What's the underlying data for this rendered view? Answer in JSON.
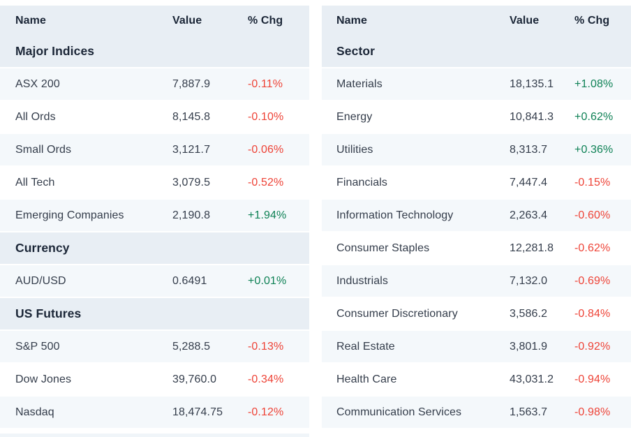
{
  "colors": {
    "header_bg": "#e8eef4",
    "stripe_row_bg": "#f4f8fb",
    "plain_row_bg": "#ffffff",
    "heading_text": "#1b2637",
    "row_text": "#343d4b",
    "positive_change": "#0e8155",
    "negative_change": "#ee4337"
  },
  "tables": [
    {
      "columns": {
        "name": "Name",
        "value": "Value",
        "chg": "% Chg"
      },
      "groups": [
        {
          "section": "Major Indices",
          "rows": [
            {
              "name": "ASX 200",
              "value": "7,887.9",
              "chg": "-0.11%"
            },
            {
              "name": "All Ords",
              "value": "8,145.8",
              "chg": "-0.10%"
            },
            {
              "name": "Small Ords",
              "value": "3,121.7",
              "chg": "-0.06%"
            },
            {
              "name": "All Tech",
              "value": "3,079.5",
              "chg": "-0.52%"
            },
            {
              "name": "Emerging Companies",
              "value": "2,190.8",
              "chg": "+1.94%"
            }
          ]
        },
        {
          "section": "Currency",
          "rows": [
            {
              "name": "AUD/USD",
              "value": "0.6491",
              "chg": "+0.01%"
            }
          ]
        },
        {
          "section": "US Futures",
          "rows": [
            {
              "name": "S&P 500",
              "value": "5,288.5",
              "chg": "-0.13%"
            },
            {
              "name": "Dow Jones",
              "value": "39,760.0",
              "chg": "-0.34%"
            },
            {
              "name": "Nasdaq",
              "value": "18,474.75",
              "chg": "-0.12%"
            }
          ]
        }
      ]
    },
    {
      "columns": {
        "name": "Name",
        "value": "Value",
        "chg": "% Chg"
      },
      "groups": [
        {
          "section": "Sector",
          "rows": [
            {
              "name": "Materials",
              "value": "18,135.1",
              "chg": "+1.08%"
            },
            {
              "name": "Energy",
              "value": "10,841.3",
              "chg": "+0.62%"
            },
            {
              "name": "Utilities",
              "value": "8,313.7",
              "chg": "+0.36%"
            },
            {
              "name": "Financials",
              "value": "7,447.4",
              "chg": "-0.15%"
            },
            {
              "name": "Information Technology",
              "value": "2,263.4",
              "chg": "-0.60%"
            },
            {
              "name": "Consumer Staples",
              "value": "12,281.8",
              "chg": "-0.62%"
            },
            {
              "name": "Industrials",
              "value": "7,132.0",
              "chg": "-0.69%"
            },
            {
              "name": "Consumer Discretionary",
              "value": "3,586.2",
              "chg": "-0.84%"
            },
            {
              "name": "Real Estate",
              "value": "3,801.9",
              "chg": "-0.92%"
            },
            {
              "name": "Health Care",
              "value": "43,031.2",
              "chg": "-0.94%"
            },
            {
              "name": "Communication Services",
              "value": "1,563.7",
              "chg": "-0.98%"
            }
          ]
        }
      ]
    }
  ],
  "chart_data": [
    {
      "type": "table",
      "title": "Market overview — indices, currency and US futures",
      "columns": [
        "Name",
        "Value",
        "% Chg"
      ],
      "sections": [
        {
          "name": "Major Indices",
          "rows": [
            [
              "ASX 200",
              7887.9,
              -0.11
            ],
            [
              "All Ords",
              8145.8,
              -0.1
            ],
            [
              "Small Ords",
              3121.7,
              -0.06
            ],
            [
              "All Tech",
              3079.5,
              -0.52
            ],
            [
              "Emerging Companies",
              2190.8,
              1.94
            ]
          ]
        },
        {
          "name": "Currency",
          "rows": [
            [
              "AUD/USD",
              0.6491,
              0.01
            ]
          ]
        },
        {
          "name": "US Futures",
          "rows": [
            [
              "S&P 500",
              5288.5,
              -0.13
            ],
            [
              "Dow Jones",
              39760.0,
              -0.34
            ],
            [
              "Nasdaq",
              18474.75,
              -0.12
            ]
          ]
        }
      ]
    },
    {
      "type": "table",
      "title": "Market overview — sectors",
      "columns": [
        "Name",
        "Value",
        "% Chg"
      ],
      "sections": [
        {
          "name": "Sector",
          "rows": [
            [
              "Materials",
              18135.1,
              1.08
            ],
            [
              "Energy",
              10841.3,
              0.62
            ],
            [
              "Utilities",
              8313.7,
              0.36
            ],
            [
              "Financials",
              7447.4,
              -0.15
            ],
            [
              "Information Technology",
              2263.4,
              -0.6
            ],
            [
              "Consumer Staples",
              12281.8,
              -0.62
            ],
            [
              "Industrials",
              7132.0,
              -0.69
            ],
            [
              "Consumer Discretionary",
              3586.2,
              -0.84
            ],
            [
              "Real Estate",
              3801.9,
              -0.92
            ],
            [
              "Health Care",
              43031.2,
              -0.94
            ],
            [
              "Communication Services",
              1563.7,
              -0.98
            ]
          ]
        }
      ]
    }
  ]
}
